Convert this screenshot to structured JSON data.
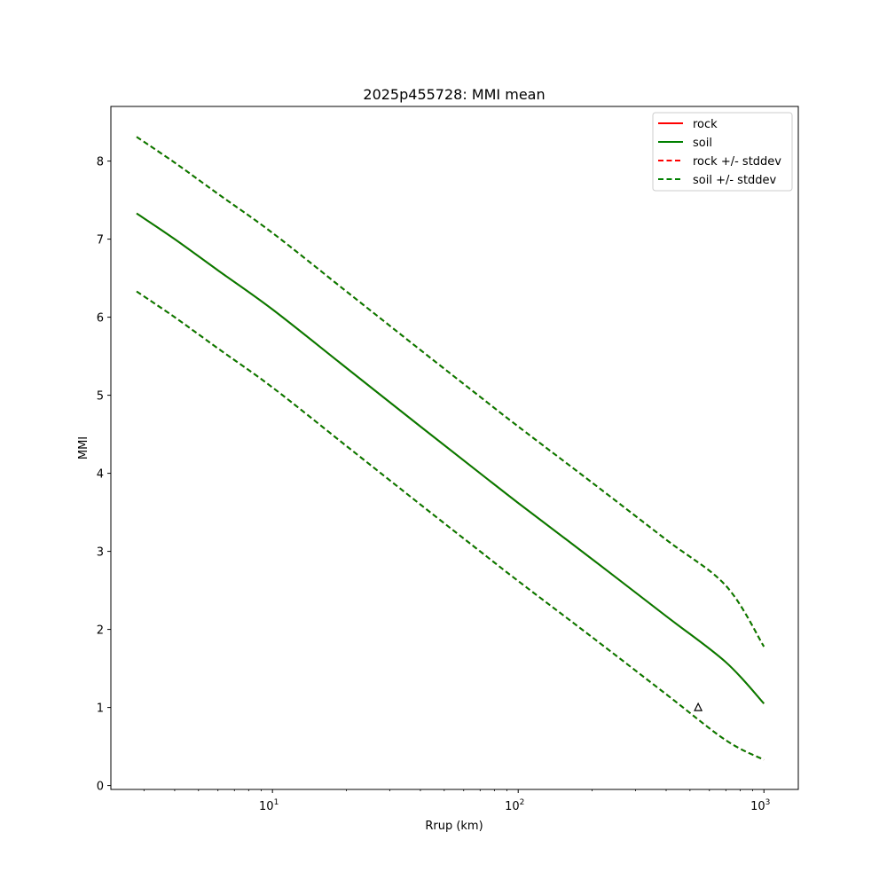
{
  "chart_data": {
    "type": "line",
    "title": "2025p455728: MMI mean",
    "xlabel": "Rrup (km)",
    "ylabel": "MMI",
    "xscale": "log",
    "xlim": [
      2.2,
      1380
    ],
    "ylim": [
      -0.05,
      8.7
    ],
    "xticks": [
      {
        "value": 10,
        "base": "10",
        "exp": "1"
      },
      {
        "value": 100,
        "base": "10",
        "exp": "2"
      },
      {
        "value": 1000,
        "base": "10",
        "exp": "3"
      }
    ],
    "yticks": [
      "0",
      "1",
      "2",
      "3",
      "4",
      "5",
      "6",
      "7",
      "8"
    ],
    "legend_position": "top-right",
    "grid": false,
    "x": [
      2.8,
      4,
      6,
      10,
      20,
      40,
      70,
      100,
      200,
      400,
      700,
      1000
    ],
    "series": [
      {
        "name": "rock",
        "style": "solid",
        "color": "#ff0000",
        "values": [
          7.33,
          7.0,
          6.6,
          6.1,
          5.35,
          4.6,
          4.0,
          3.62,
          2.9,
          2.17,
          1.58,
          1.05
        ]
      },
      {
        "name": "soil",
        "style": "solid",
        "color": "#008000",
        "values": [
          7.33,
          7.0,
          6.6,
          6.1,
          5.35,
          4.6,
          4.0,
          3.62,
          2.9,
          2.17,
          1.58,
          1.05
        ]
      },
      {
        "name": "rock +/- stddev",
        "style": "dashed",
        "color": "#ff0000",
        "upper": [
          8.31,
          7.98,
          7.58,
          7.08,
          6.33,
          5.58,
          4.98,
          4.6,
          3.88,
          3.15,
          2.56,
          1.78
        ],
        "lower": [
          6.33,
          6.0,
          5.6,
          5.1,
          4.35,
          3.6,
          3.0,
          2.62,
          1.9,
          1.17,
          0.58,
          0.33
        ]
      },
      {
        "name": "soil +/- stddev",
        "style": "dashed",
        "color": "#008000",
        "upper": [
          8.31,
          7.98,
          7.58,
          7.08,
          6.33,
          5.58,
          4.98,
          4.6,
          3.88,
          3.15,
          2.56,
          1.78
        ],
        "lower": [
          6.33,
          6.0,
          5.6,
          5.1,
          4.35,
          3.6,
          3.0,
          2.62,
          1.9,
          1.17,
          0.58,
          0.33
        ]
      }
    ],
    "markers": [
      {
        "x": 540,
        "y": 1.0,
        "shape": "triangle"
      }
    ]
  }
}
